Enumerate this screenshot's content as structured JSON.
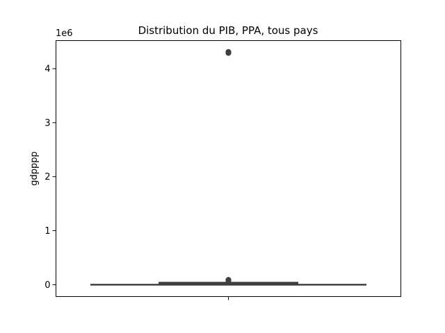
{
  "chart_data": {
    "type": "box",
    "title": "Distribution du PIB, PPA, tous pays",
    "xlabel": "",
    "ylabel": "gdpppp",
    "offset_label": "1e6",
    "ylim": [
      -220000,
      4520000
    ],
    "yticks": [
      0,
      1,
      2,
      3,
      4
    ],
    "ytick_labels": [
      "0",
      "1",
      "2",
      "3",
      "4"
    ],
    "ytick_multiplier": 1000000,
    "grid": false,
    "legend": "none",
    "box": {
      "whisker_low": 0,
      "q1": 10000,
      "median": 20000,
      "q3": 40000,
      "whisker_high": 70000
    },
    "outliers": [
      75000,
      80000,
      90000,
      4290000,
      4300000,
      4310000
    ],
    "colors": {
      "box_face": "#3a6aa8",
      "box_edge": "#3f3f3f",
      "outlier_fill": "#3f3f3f"
    }
  }
}
